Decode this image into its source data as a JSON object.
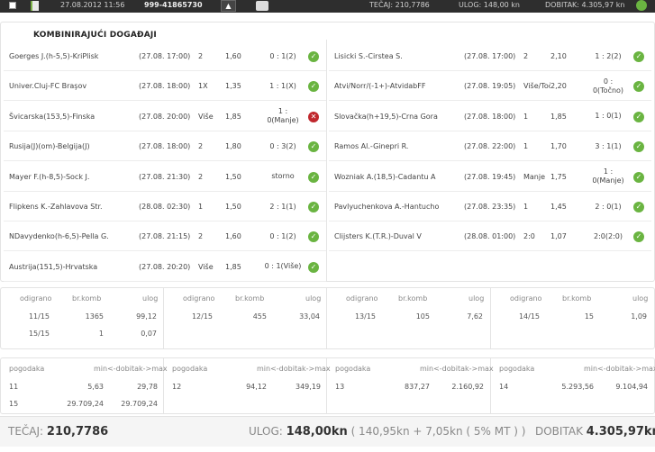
{
  "topbar": {
    "datetime": "27.08.2012 11:56",
    "ticket_id": "999-41865730",
    "tecaj": "TEČAJ: 210,7786",
    "ulog": "ULOG: 148,00 kn",
    "dobitak": "DOBITAK: 4.305,97 kn"
  },
  "panel": {
    "title": "KOMBINIRAJUĆI DOGAĐAJI"
  },
  "matches_left": [
    {
      "name": "Goerges J.(h-5,5)-KriPlisk",
      "date": "(27.08. 17:00)",
      "tip": "2",
      "odds": "1,60",
      "result": [
        "0 : 1(2)"
      ],
      "status": "ok"
    },
    {
      "name": "Univer.Cluj-FC Braşov",
      "date": "(27.08. 18:00)",
      "tip": "1X",
      "odds": "1,35",
      "result": [
        "1 : 1(X)"
      ],
      "status": "ok"
    },
    {
      "name": "Švicarska(153,5)-Finska",
      "date": "(27.08. 20:00)",
      "tip": "Više",
      "odds": "1,85",
      "result": [
        "1 :",
        "0(Manje)"
      ],
      "status": "lost"
    },
    {
      "name": "Rusija(J)(om)-Belgija(J)",
      "date": "(27.08. 18:00)",
      "tip": "2",
      "odds": "1,80",
      "result": [
        "0 : 3(2)"
      ],
      "status": "ok"
    },
    {
      "name": "Mayer F.(h-8,5)-Sock J.",
      "date": "(27.08. 21:30)",
      "tip": "2",
      "odds": "1,50",
      "result": [
        "storno"
      ],
      "status": "ok"
    },
    {
      "name": "Flipkens K.-Zahlavova Str.",
      "date": "(28.08. 02:30)",
      "tip": "1",
      "odds": "1,50",
      "result": [
        "2 : 1(1)"
      ],
      "status": "ok"
    },
    {
      "name": "NDavydenko(h-6,5)-Pella G.",
      "date": "(27.08. 21:15)",
      "tip": "2",
      "odds": "1,60",
      "result": [
        "0 : 1(2)"
      ],
      "status": "ok"
    },
    {
      "name": "Austrija(151,5)-Hrvatska",
      "date": "(27.08. 20:20)",
      "tip": "Više",
      "odds": "1,85",
      "result": [
        "0 : 1(Više)"
      ],
      "status": "ok"
    }
  ],
  "matches_right": [
    {
      "name": "Lisicki S.-Cirstea S.",
      "date": "(27.08. 17:00)",
      "tip": "2",
      "odds": "2,10",
      "result": [
        "1 : 2(2)"
      ],
      "status": "ok"
    },
    {
      "name": "Atvi/Norr/(-1+)-AtvidabFF",
      "date": "(27.08. 19:05)",
      "tip": "Više/Toč.",
      "odds": "2,20",
      "result": [
        "0 :",
        "0(Točno)"
      ],
      "status": "ok"
    },
    {
      "name": "Slovačka(h+19,5)-Crna Gora",
      "date": "(27.08. 18:00)",
      "tip": "1",
      "odds": "1,85",
      "result": [
        "1 : 0(1)"
      ],
      "status": "ok"
    },
    {
      "name": "Ramos Al.-Ginepri R.",
      "date": "(27.08. 22:00)",
      "tip": "1",
      "odds": "1,70",
      "result": [
        "3 : 1(1)"
      ],
      "status": "ok"
    },
    {
      "name": "Wozniak A.(18,5)-Cadantu A",
      "date": "(27.08. 19:45)",
      "tip": "Manje",
      "odds": "1,75",
      "result": [
        "1 :",
        "0(Manje)"
      ],
      "status": "ok"
    },
    {
      "name": "Pavlyuchenkova A.-Hantucho",
      "date": "(27.08. 23:35)",
      "tip": "1",
      "odds": "1,45",
      "result": [
        "2 : 0(1)"
      ],
      "status": "ok"
    },
    {
      "name": "Clijsters K.(T.R.)-Duval V",
      "date": "(28.08. 01:00)",
      "tip": "2:0",
      "odds": "1,07",
      "result": [
        "2:0(2:0)"
      ],
      "status": "ok"
    }
  ],
  "combos": {
    "headers": [
      "odigrano",
      "br.komb",
      "ulog"
    ],
    "groups": [
      {
        "rows": [
          [
            "11/15",
            "1365",
            "99,12"
          ],
          [
            "15/15",
            "1",
            "0,07"
          ]
        ]
      },
      {
        "rows": [
          [
            "12/15",
            "455",
            "33,04"
          ]
        ]
      },
      {
        "rows": [
          [
            "13/15",
            "105",
            "7,62"
          ]
        ]
      },
      {
        "rows": [
          [
            "14/15",
            "15",
            "1,09"
          ]
        ]
      }
    ]
  },
  "wins": {
    "headers": [
      "pogodaka",
      "min<-dobitak->max"
    ],
    "groups": [
      {
        "rows": [
          [
            "11",
            "5,63",
            "29,78"
          ],
          [
            "15",
            "29.709,24",
            "29.709,24"
          ]
        ]
      },
      {
        "rows": [
          [
            "12",
            "94,12",
            "349,19"
          ]
        ]
      },
      {
        "rows": [
          [
            "13",
            "837,27",
            "2.160,92"
          ]
        ]
      },
      {
        "rows": [
          [
            "14",
            "5.293,56",
            "9.104,94"
          ]
        ]
      }
    ]
  },
  "footer": {
    "tecaj_label": "TEČAJ:",
    "tecaj_value": "210,7786",
    "ulog_label": "ULOG:",
    "ulog_value": "148,00kn",
    "ulog_detail": "( 140,95kn + 7,05kn ( 5% MT ) )",
    "dobitak_label": "DOBITAK",
    "dobitak_value": "4.305,97kn"
  },
  "colors": {
    "ok": "#6ab441",
    "lost": "#c0272d",
    "topbar": "#2e2e2e"
  },
  "icons": {
    "ok": "check-icon",
    "lost": "x-icon"
  }
}
